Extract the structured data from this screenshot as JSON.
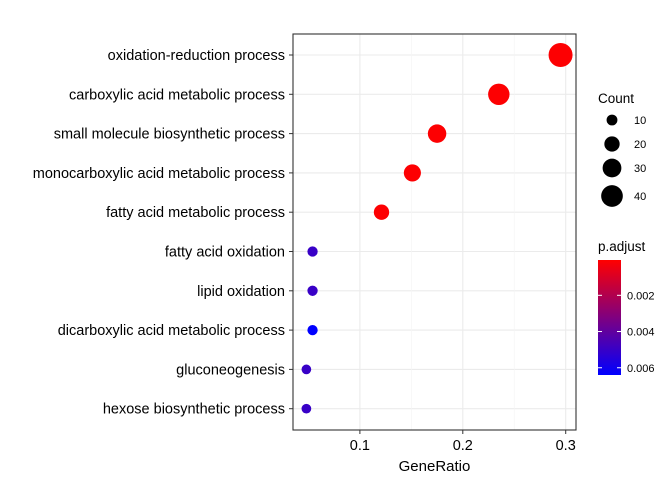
{
  "chart_data": {
    "type": "scatter",
    "title": "",
    "xlabel": "GeneRatio",
    "ylabel": "",
    "xlim": [
      0.035,
      0.31
    ],
    "x_ticks": [
      0.1,
      0.2,
      0.3
    ],
    "x_tick_labels": [
      "0.1",
      "0.2",
      "0.3"
    ],
    "grid": true,
    "categories": [
      "oxidation-reduction process",
      "carboxylic acid metabolic process",
      "small molecule biosynthetic process",
      "monocarboxylic acid metabolic process",
      "fatty acid metabolic process",
      "fatty acid oxidation",
      "lipid oxidation",
      "dicarboxylic acid metabolic process",
      "gluconeogenesis",
      "hexose biosynthetic process"
    ],
    "points": [
      {
        "term": "oxidation-reduction process",
        "gene_ratio": 0.295,
        "count": 49,
        "p_adjust": 0.0001
      },
      {
        "term": "carboxylic acid metabolic process",
        "gene_ratio": 0.235,
        "count": 39,
        "p_adjust": 0.0001
      },
      {
        "term": "small molecule biosynthetic process",
        "gene_ratio": 0.175,
        "count": 29,
        "p_adjust": 0.0001
      },
      {
        "term": "monocarboxylic acid metabolic process",
        "gene_ratio": 0.151,
        "count": 25,
        "p_adjust": 0.0001
      },
      {
        "term": "fatty acid metabolic process",
        "gene_ratio": 0.121,
        "count": 20,
        "p_adjust": 0.0001
      },
      {
        "term": "fatty acid oxidation",
        "gene_ratio": 0.054,
        "count": 9,
        "p_adjust": 0.005
      },
      {
        "term": "lipid oxidation",
        "gene_ratio": 0.054,
        "count": 9,
        "p_adjust": 0.005
      },
      {
        "term": "dicarboxylic acid metabolic process",
        "gene_ratio": 0.054,
        "count": 9,
        "p_adjust": 0.0064
      },
      {
        "term": "gluconeogenesis",
        "gene_ratio": 0.048,
        "count": 8,
        "p_adjust": 0.005
      },
      {
        "term": "hexose biosynthetic process",
        "gene_ratio": 0.048,
        "count": 8,
        "p_adjust": 0.005
      }
    ],
    "size_legend": {
      "title": "Count",
      "values": [
        10,
        20,
        30,
        40
      ],
      "labels": [
        "10",
        "20",
        "30",
        "40"
      ]
    },
    "color_legend": {
      "title": "p.adjust",
      "range": [
        5e-05,
        0.0064
      ],
      "low_color": "#FF0000",
      "high_color": "#0000FF",
      "ticks": [
        0.002,
        0.004,
        0.006
      ],
      "tick_labels": [
        "0.002",
        "0.004",
        "0.006"
      ]
    },
    "legend_position": "right",
    "colors": {
      "panel_border": "#333333",
      "grid_major": "#EBEBEB",
      "tick_text": "#000000",
      "axis_text": "#000000"
    }
  }
}
